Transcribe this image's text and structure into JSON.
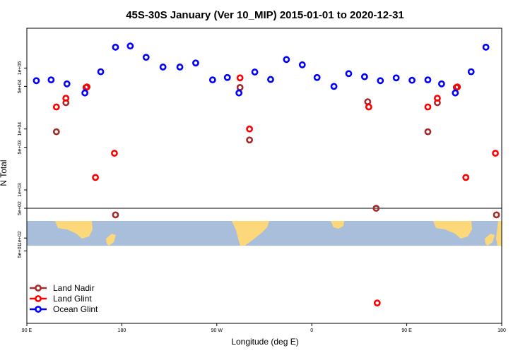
{
  "chart_data": {
    "type": "scatter",
    "title": "45S-30S January (Ver 10_MIP)   2015-01-01 to 2020-12-31",
    "xlabel": "Longitude (deg E)",
    "ylabel": "N Total",
    "x_ticks": [
      {
        "value": 90,
        "label": "90 E"
      },
      {
        "value": 180,
        "label": "180"
      },
      {
        "value": 270,
        "label": "90 W"
      },
      {
        "value": 360,
        "label": "0"
      },
      {
        "value": 450,
        "label": "90 E"
      },
      {
        "value": 540,
        "label": "180"
      }
    ],
    "xlim": [
      90,
      540
    ],
    "y_scale": "log",
    "upper_panel": {
      "ylim": [
        500,
        450000
      ],
      "y_ticks": [
        {
          "value": 1000,
          "label": "1e+03"
        },
        {
          "value": 5000,
          "label": "5e+03"
        },
        {
          "value": 10000,
          "label": "1e+04"
        },
        {
          "value": 50000,
          "label": "5e+04"
        },
        {
          "value": 100000,
          "label": "1e+05"
        }
      ]
    },
    "lower_panel": {
      "ylim": [
        1,
        500
      ],
      "y_ticks": [
        {
          "value": 50,
          "label": "5e+01"
        },
        {
          "value": 100,
          "label": "1e+02"
        },
        {
          "value": 500,
          "label": "5e+02"
        }
      ]
    },
    "legend_position": "bottom-left",
    "series": [
      {
        "name": "Land Nadir",
        "color": "#a52a2a",
        "points": [
          {
            "x": 118,
            "y": 9000
          },
          {
            "x": 127,
            "y": 27000
          },
          {
            "x": 146,
            "y": 48000
          },
          {
            "x": 174,
            "y": 350
          },
          {
            "x": 292,
            "y": 48000
          },
          {
            "x": 301,
            "y": 6600
          },
          {
            "x": 413,
            "y": 28000
          },
          {
            "x": 421,
            "y": 500
          },
          {
            "x": 470,
            "y": 9000
          },
          {
            "x": 479,
            "y": 27000
          },
          {
            "x": 497,
            "y": 48000
          },
          {
            "x": 535,
            "y": 350
          }
        ]
      },
      {
        "name": "Land Glint",
        "color": "#ff0000",
        "points": [
          {
            "x": 118,
            "y": 23000
          },
          {
            "x": 127,
            "y": 32000
          },
          {
            "x": 147,
            "y": 49000
          },
          {
            "x": 155,
            "y": 1600
          },
          {
            "x": 173,
            "y": 4000
          },
          {
            "x": 292,
            "y": 69000
          },
          {
            "x": 301,
            "y": 10000
          },
          {
            "x": 414,
            "y": 23000
          },
          {
            "x": 422,
            "y": 3
          },
          {
            "x": 470,
            "y": 23000
          },
          {
            "x": 479,
            "y": 32000
          },
          {
            "x": 498,
            "y": 49000
          },
          {
            "x": 506,
            "y": 1600
          },
          {
            "x": 534,
            "y": 4000
          }
        ]
      },
      {
        "name": "Ocean Glint",
        "color": "#0000ff",
        "points": [
          {
            "x": 99,
            "y": 62000
          },
          {
            "x": 113,
            "y": 64000
          },
          {
            "x": 128,
            "y": 55000
          },
          {
            "x": 145,
            "y": 39000
          },
          {
            "x": 160,
            "y": 87000
          },
          {
            "x": 174,
            "y": 220000
          },
          {
            "x": 188,
            "y": 230000
          },
          {
            "x": 203,
            "y": 150000
          },
          {
            "x": 219,
            "y": 104000
          },
          {
            "x": 235,
            "y": 104000
          },
          {
            "x": 250,
            "y": 121000
          },
          {
            "x": 266,
            "y": 64000
          },
          {
            "x": 280,
            "y": 70000
          },
          {
            "x": 291,
            "y": 39000
          },
          {
            "x": 306,
            "y": 86000
          },
          {
            "x": 321,
            "y": 65000
          },
          {
            "x": 336,
            "y": 138000
          },
          {
            "x": 351,
            "y": 113000
          },
          {
            "x": 365,
            "y": 70000
          },
          {
            "x": 381,
            "y": 50000
          },
          {
            "x": 395,
            "y": 81000
          },
          {
            "x": 410,
            "y": 72000
          },
          {
            "x": 425,
            "y": 62000
          },
          {
            "x": 440,
            "y": 69000
          },
          {
            "x": 455,
            "y": 63000
          },
          {
            "x": 470,
            "y": 64000
          },
          {
            "x": 483,
            "y": 55000
          },
          {
            "x": 496,
            "y": 39000
          },
          {
            "x": 511,
            "y": 87000
          },
          {
            "x": 525,
            "y": 220000
          }
        ]
      }
    ]
  }
}
